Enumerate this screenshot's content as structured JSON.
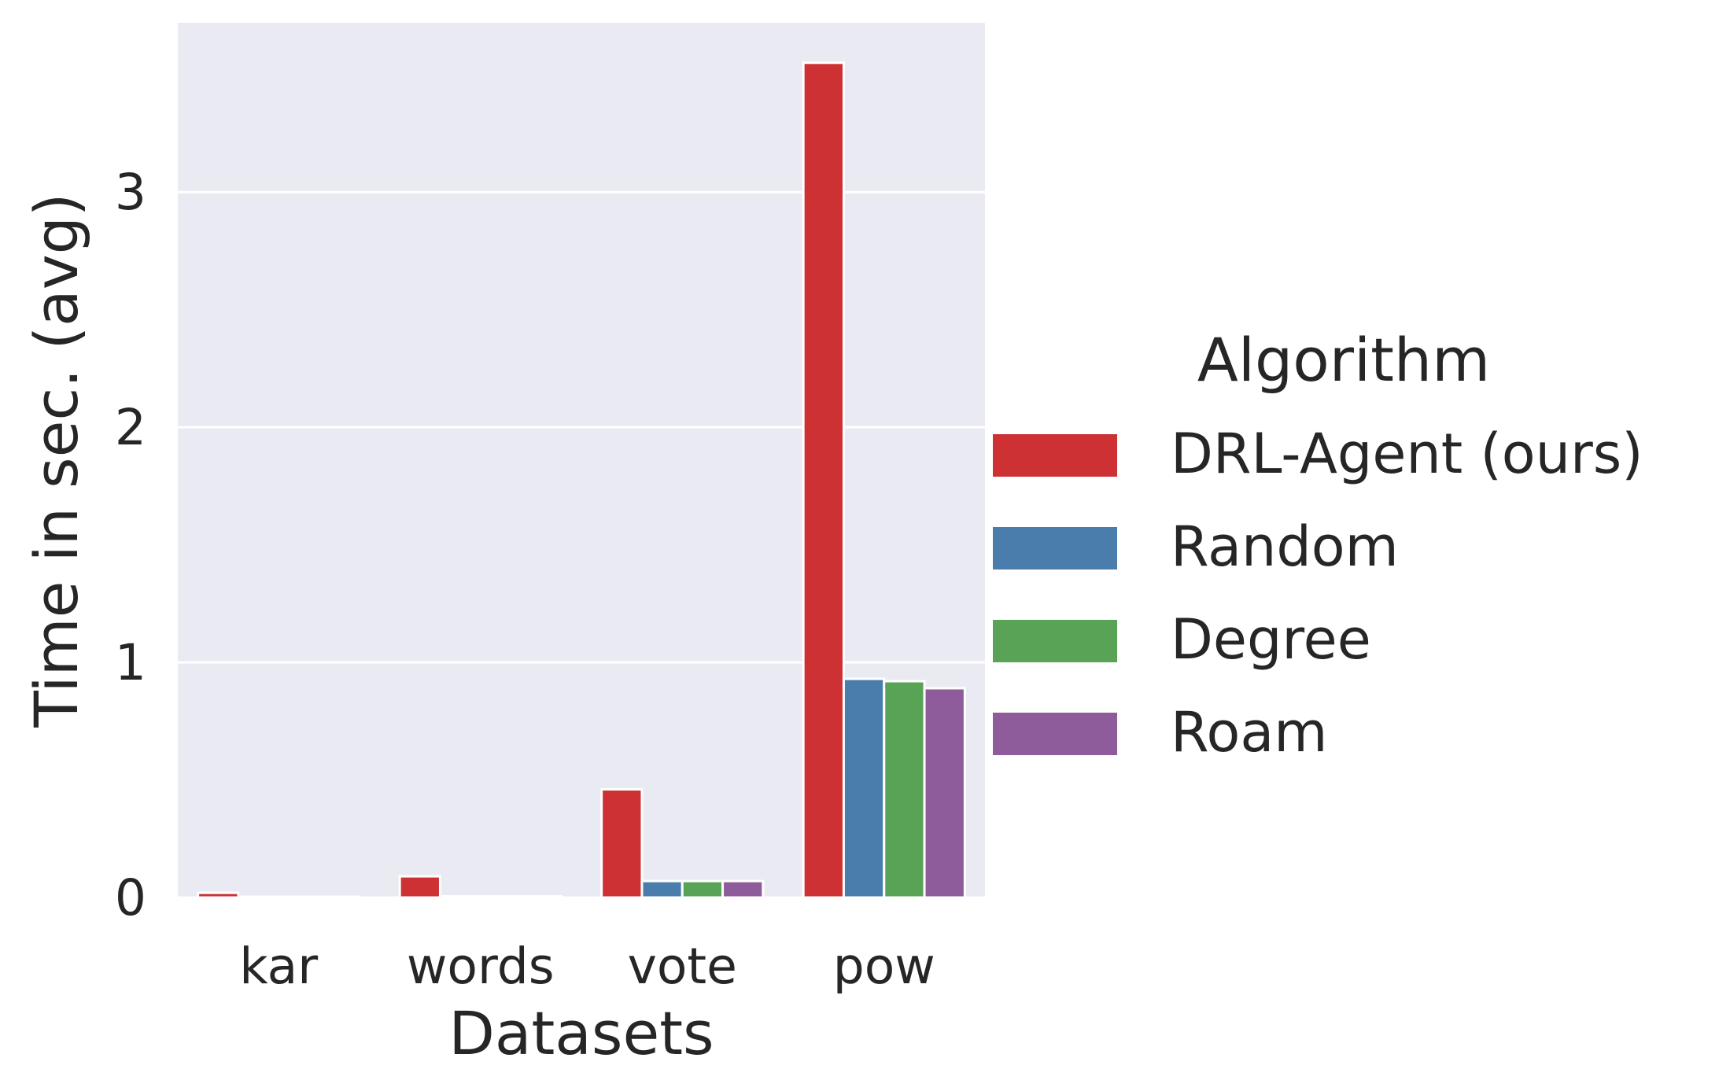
{
  "chart_data": {
    "type": "bar",
    "categories": [
      "kar",
      "words",
      "vote",
      "pow"
    ],
    "series": [
      {
        "name": "DRL-Agent (ours)",
        "values": [
          0.02,
          0.09,
          0.46,
          3.55
        ],
        "color": "#cd3134"
      },
      {
        "name": "Random",
        "values": [
          0.003,
          0.005,
          0.07,
          0.93
        ],
        "color": "#4a7dac"
      },
      {
        "name": "Degree",
        "values": [
          0.003,
          0.005,
          0.07,
          0.92
        ],
        "color": "#59a357"
      },
      {
        "name": "Roam",
        "values": [
          0.003,
          0.005,
          0.07,
          0.89
        ],
        "color": "#8f5c9b"
      }
    ],
    "xlabel": "Datasets",
    "ylabel": "Time in sec. (avg)",
    "ylim": [
      0,
      3.72
    ],
    "yticks": [
      0,
      1,
      2,
      3
    ],
    "grid": true,
    "legend": {
      "title": "Algorithm",
      "placement": "right"
    }
  }
}
